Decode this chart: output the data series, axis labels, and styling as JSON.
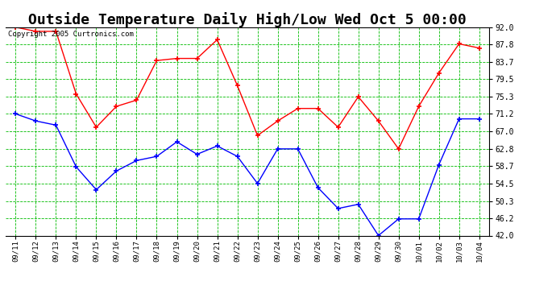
{
  "title": "Outside Temperature Daily High/Low Wed Oct 5 00:00",
  "copyright_text": "Copyright 2005 Curtronics.com",
  "x_labels": [
    "09/11",
    "09/12",
    "09/13",
    "09/14",
    "09/15",
    "09/16",
    "09/17",
    "09/18",
    "09/19",
    "09/20",
    "09/21",
    "09/22",
    "09/23",
    "09/24",
    "09/25",
    "09/26",
    "09/27",
    "09/28",
    "09/29",
    "09/30",
    "10/01",
    "10/02",
    "10/03",
    "10/04"
  ],
  "high_values": [
    92.0,
    91.0,
    91.0,
    76.0,
    68.0,
    73.0,
    74.5,
    84.0,
    84.5,
    84.5,
    89.0,
    78.0,
    66.0,
    69.5,
    72.5,
    72.5,
    68.0,
    75.3,
    69.5,
    62.8,
    73.0,
    81.0,
    88.0,
    87.0
  ],
  "low_values": [
    71.2,
    69.5,
    68.5,
    58.5,
    53.0,
    57.5,
    60.0,
    61.0,
    64.5,
    61.5,
    63.5,
    61.0,
    54.5,
    62.8,
    62.8,
    53.5,
    48.5,
    49.5,
    42.0,
    46.0,
    46.0,
    59.0,
    70.0,
    70.0
  ],
  "high_color": "#ff0000",
  "low_color": "#0000ff",
  "bg_color": "#ffffff",
  "grid_color": "#00bb00",
  "y_ticks": [
    42.0,
    46.2,
    50.3,
    54.5,
    58.7,
    62.8,
    67.0,
    71.2,
    75.3,
    79.5,
    83.7,
    87.8,
    92.0
  ],
  "ylim": [
    42.0,
    92.0
  ],
  "title_fontsize": 13,
  "marker_size": 4
}
